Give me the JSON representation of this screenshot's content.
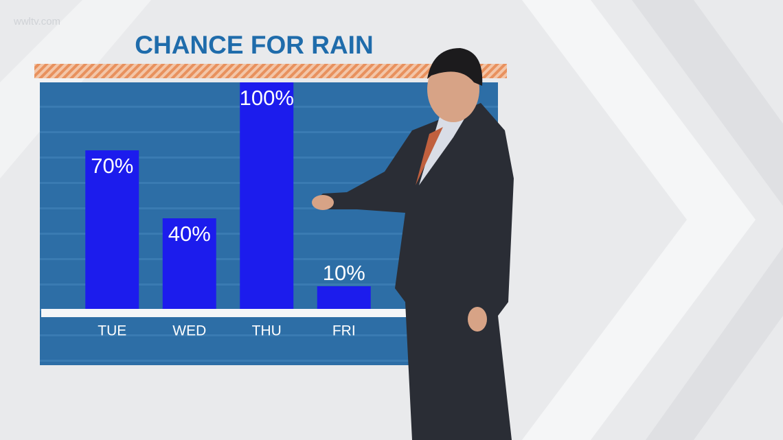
{
  "watermark": "wwltv.com",
  "chart_data": {
    "type": "bar",
    "title": "CHANCE FOR RAIN",
    "categories": [
      "TUE",
      "WED",
      "THU",
      "FRI"
    ],
    "values": [
      70,
      40,
      100,
      10
    ],
    "value_labels": [
      "70%",
      "40%",
      "100%",
      "10%"
    ],
    "color": "#1c1ced",
    "ylim": [
      0,
      100
    ]
  }
}
